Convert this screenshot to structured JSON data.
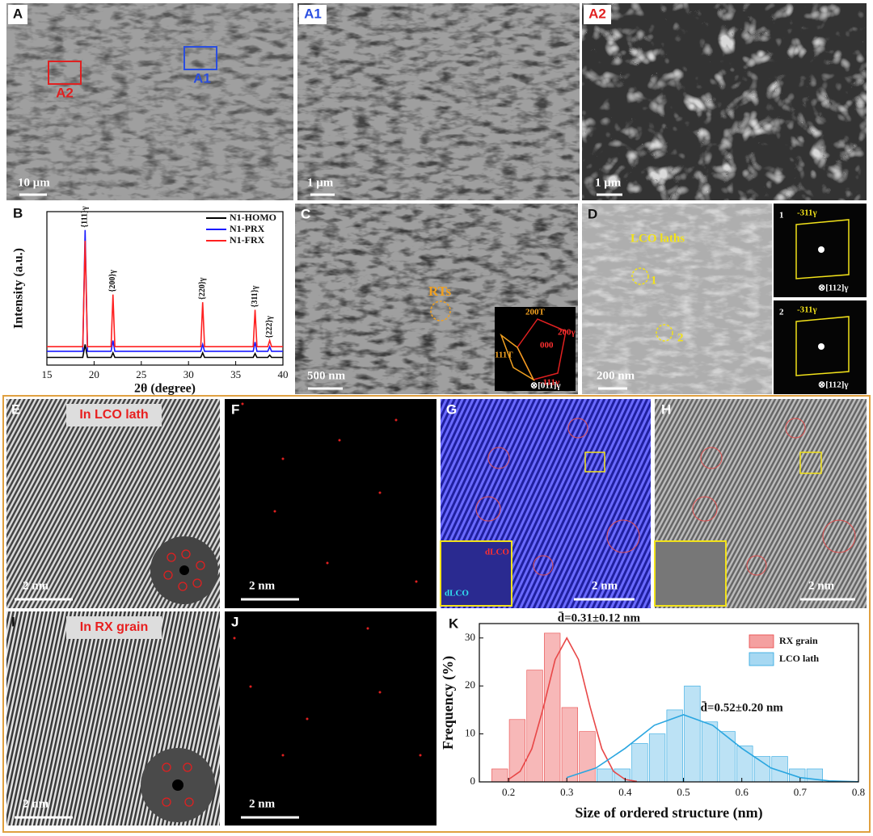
{
  "panels": {
    "A": {
      "label": "A",
      "scale_bar": "10 μm",
      "box_labels": [
        "A2",
        "A1"
      ]
    },
    "A1": {
      "label": "A1",
      "scale_bar": "1 μm"
    },
    "A2": {
      "label": "A2",
      "scale_bar": "1 μm"
    },
    "C": {
      "label": "C",
      "scale_bar": "500 nm",
      "annotation": "RTs",
      "inset": [
        "200T",
        "111T",
        "000",
        "200γ",
        "-111γ",
        "⊗[011]γ"
      ]
    },
    "D": {
      "label": "D",
      "scale_bar": "200 nm",
      "annotation": "LCO laths",
      "markers": [
        "1",
        "2"
      ],
      "insets": [
        {
          "label": "1",
          "spot": "-311γ",
          "zone": "⊗[112]γ"
        },
        {
          "label": "2",
          "spot": "-311γ",
          "zone": "⊗[112]γ"
        }
      ]
    },
    "E": {
      "label": "E",
      "note": "In LCO lath",
      "scale_bar": "2 nm"
    },
    "F": {
      "label": "F",
      "scale_bar": "2 nm"
    },
    "G": {
      "label": "G",
      "scale_bar": "2 nm",
      "inset": [
        "dLCO",
        "dLCO"
      ]
    },
    "H": {
      "label": "H",
      "scale_bar": "2 nm"
    },
    "I": {
      "label": "I",
      "note": "In RX grain",
      "scale_bar": "2 nm"
    },
    "J": {
      "label": "J",
      "scale_bar": "2 nm"
    }
  },
  "chart_data": [
    {
      "type": "line",
      "label": "B",
      "xlabel": "2θ (degree)",
      "ylabel": "Intensity (a.u.)",
      "x": [
        15,
        18.8,
        19.05,
        19.3,
        21.8,
        22.0,
        22.2,
        31.3,
        31.5,
        31.7,
        36.85,
        37.05,
        37.25,
        38.4,
        38.6,
        38.8,
        40
      ],
      "series": [
        {
          "name": "N1-HOMO",
          "color": "#000000",
          "values": [
            5,
            5,
            13.5,
            5,
            5,
            8,
            5,
            5,
            8,
            5,
            5,
            7.5,
            5,
            5,
            6.5,
            5,
            5
          ]
        },
        {
          "name": "N1-PRX",
          "color": "#1a1aff",
          "values": [
            9,
            9,
            88,
            9,
            9,
            16,
            9,
            9,
            13.5,
            9,
            9,
            15,
            9,
            9,
            12,
            9,
            9
          ]
        },
        {
          "name": "N1-FRX",
          "color": "#ff2020",
          "values": [
            12,
            12,
            81,
            12,
            12,
            46,
            12,
            12,
            41,
            12,
            12,
            36,
            12,
            12,
            16,
            12,
            12
          ]
        }
      ],
      "peak_labels": [
        "{111}γ",
        "{200}γ",
        "{220}γ",
        "{311}γ",
        "{222}γ"
      ],
      "xlim": [
        15,
        40
      ],
      "xticks": [
        15,
        20,
        25,
        30,
        35,
        40
      ],
      "ylim": [
        0,
        100
      ],
      "legend": "upper right"
    },
    {
      "type": "histogram",
      "label": "K",
      "xlabel": "Size of ordered structure (nm)",
      "ylabel": "Frequency (%)",
      "series": [
        {
          "name": "RX grain",
          "color": "#f4a0a0",
          "line_color": "#e84848",
          "bins": [
            0.17,
            0.2,
            0.23,
            0.26,
            0.29,
            0.32,
            0.35
          ],
          "values": [
            2.7,
            13,
            23.3,
            31,
            15.5,
            10.5
          ],
          "fit": {
            "x": [
              0.2,
              0.22,
              0.24,
              0.26,
              0.28,
              0.3,
              0.32,
              0.34,
              0.36,
              0.38,
              0.4,
              0.42
            ],
            "values": [
              0.5,
              2.2,
              6.9,
              15.6,
              25.5,
              30,
              25.5,
              15.6,
              6.9,
              2.2,
              0.5,
              0.1
            ]
          }
        },
        {
          "name": "LCO lath",
          "color": "#a6d8f2",
          "line_color": "#2aa6e0",
          "bins": [
            0.35,
            0.38,
            0.41,
            0.44,
            0.47,
            0.5,
            0.53,
            0.56,
            0.59,
            0.62,
            0.65,
            0.68,
            0.71,
            0.74
          ],
          "values": [
            2.7,
            2.7,
            8,
            10,
            15,
            20,
            12.5,
            10.5,
            7.5,
            5.3,
            5.3,
            2.7,
            2.7
          ],
          "fit": {
            "x": [
              0.3,
              0.35,
              0.4,
              0.45,
              0.5,
              0.55,
              0.6,
              0.65,
              0.7,
              0.75,
              0.8
            ],
            "values": [
              0.9,
              2.9,
              7,
              11.8,
              14,
              11.8,
              7,
              2.9,
              0.9,
              0.2,
              0.03
            ]
          }
        }
      ],
      "annotations": [
        "d̄=0.31±0.12 nm",
        "d̄=0.52±0.20 nm"
      ],
      "xlim": [
        0.15,
        0.8
      ],
      "xticks": [
        0.2,
        0.3,
        0.4,
        0.5,
        0.6,
        0.7,
        0.8
      ],
      "ylim": [
        0,
        33
      ],
      "yticks": [
        0,
        10,
        20,
        30
      ],
      "legend": "upper right"
    }
  ]
}
